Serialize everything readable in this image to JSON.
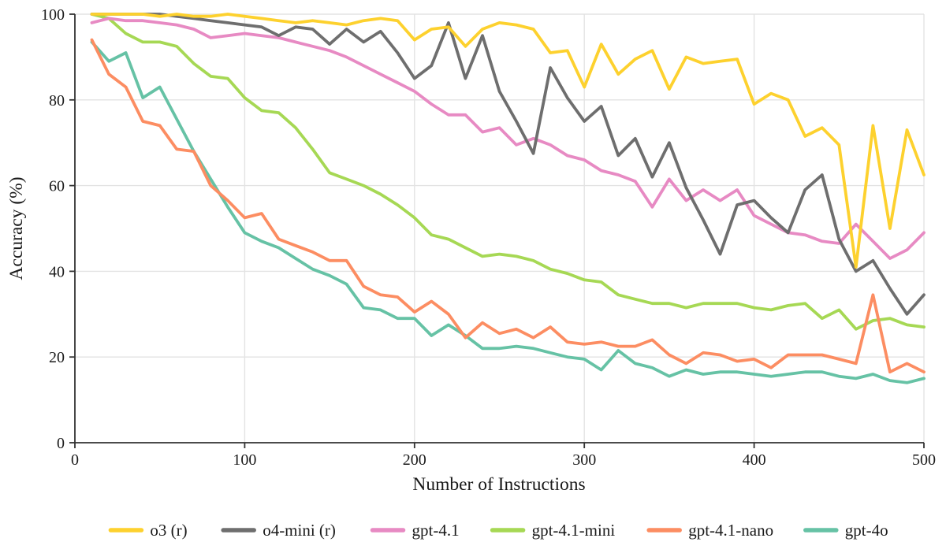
{
  "chart_data": {
    "type": "line",
    "title": "",
    "xlabel": "Number of Instructions",
    "ylabel": "Accuracy (%)",
    "xlim": [
      0,
      500
    ],
    "ylim": [
      0,
      100
    ],
    "x_ticks": [
      0,
      100,
      200,
      300,
      400,
      500
    ],
    "y_ticks": [
      0,
      20,
      40,
      60,
      80,
      100
    ],
    "grid": true,
    "grid_color": "#e3e3e3",
    "axis_color": "#333333",
    "legend_position": "bottom",
    "x": [
      10,
      20,
      30,
      40,
      50,
      60,
      70,
      80,
      90,
      100,
      110,
      120,
      130,
      140,
      150,
      160,
      170,
      180,
      190,
      200,
      210,
      220,
      230,
      240,
      250,
      260,
      270,
      280,
      290,
      300,
      310,
      320,
      330,
      340,
      350,
      360,
      370,
      380,
      390,
      400,
      410,
      420,
      430,
      440,
      450,
      460,
      470,
      480,
      490,
      500
    ],
    "series": [
      {
        "name": "o3 (r)",
        "color": "#FDD12E",
        "values": [
          100,
          100,
          100,
          100,
          99.5,
          100,
          99.5,
          99.5,
          100,
          99.5,
          99,
          98.5,
          98,
          98.5,
          98,
          97.5,
          98.5,
          99,
          98.5,
          94,
          96.5,
          97,
          92.5,
          96.5,
          98,
          97.5,
          96.5,
          91,
          91.5,
          83,
          93,
          86,
          89.5,
          91.5,
          82.5,
          90,
          88.5,
          89,
          89.5,
          79,
          81.5,
          80,
          71.5,
          73.5,
          69.5,
          41,
          74,
          50,
          73,
          62.5
        ]
      },
      {
        "name": "o4-mini (r)",
        "color": "#6E6E6E",
        "values": [
          100,
          100,
          100,
          100,
          100,
          99.5,
          99,
          98.5,
          98,
          97.5,
          97,
          95,
          97,
          96.5,
          93,
          96.5,
          93.5,
          96,
          91,
          85,
          88,
          98,
          85,
          95,
          82,
          75,
          67.5,
          87.5,
          80.5,
          75,
          78.5,
          67,
          71,
          62,
          70,
          59.5,
          52,
          44,
          55.5,
          56.5,
          52.5,
          49,
          59,
          62.5,
          47.5,
          40,
          42.5,
          36,
          30,
          34.5
        ]
      },
      {
        "name": "gpt-4.1",
        "color": "#E78AC3",
        "values": [
          98,
          99,
          98.5,
          98.5,
          98,
          97.5,
          96.5,
          94.5,
          95,
          95.5,
          95,
          94.5,
          93.5,
          92.5,
          91.5,
          90,
          88,
          86,
          84,
          82,
          79,
          76.5,
          76.5,
          72.5,
          73.5,
          69.5,
          71,
          69.5,
          67,
          66,
          63.5,
          62.5,
          61,
          55,
          61.5,
          56.5,
          59,
          56.5,
          59,
          53,
          51,
          49,
          48.5,
          47,
          46.5,
          51,
          47,
          43,
          45,
          49
        ]
      },
      {
        "name": "gpt-4.1-mini",
        "color": "#A6D854",
        "values": [
          100,
          99,
          95.5,
          93.5,
          93.5,
          92.5,
          88.5,
          85.5,
          85,
          80.5,
          77.5,
          77,
          73.5,
          68.5,
          63,
          61.5,
          60,
          58,
          55.5,
          52.5,
          48.5,
          47.5,
          45.5,
          43.5,
          44,
          43.5,
          42.5,
          40.5,
          39.5,
          38,
          37.5,
          34.5,
          33.5,
          32.5,
          32.5,
          31.5,
          32.5,
          32.5,
          32.5,
          31.5,
          31,
          32,
          32.5,
          29,
          31,
          26.5,
          28.5,
          29,
          27.5,
          27
        ]
      },
      {
        "name": "gpt-4.1-nano",
        "color": "#FC8D62",
        "values": [
          94,
          86,
          83,
          75,
          74,
          68.5,
          68,
          60,
          56.5,
          52.5,
          53.5,
          47.5,
          46,
          44.5,
          42.5,
          42.5,
          36.5,
          34.5,
          34,
          30.5,
          33,
          30,
          24.5,
          28,
          25.5,
          26.5,
          24.5,
          27,
          23.5,
          23,
          23.5,
          22.5,
          22.5,
          24,
          20.5,
          18.5,
          21,
          20.5,
          19,
          19.5,
          17.5,
          20.5,
          20.5,
          20.5,
          19.5,
          18.5,
          34.5,
          16.5,
          18.5,
          16.5
        ]
      },
      {
        "name": "gpt-4o",
        "color": "#66C2A5",
        "values": [
          93.5,
          89,
          91,
          80.5,
          83,
          75.5,
          68,
          61.5,
          55,
          49,
          47,
          45.5,
          43,
          40.5,
          39,
          37,
          31.5,
          31,
          29,
          29,
          25,
          27.5,
          25,
          22,
          22,
          22.5,
          22,
          21,
          20,
          19.5,
          17,
          21.5,
          18.5,
          17.5,
          15.5,
          17,
          16,
          16.5,
          16.5,
          16,
          15.5,
          16,
          16.5,
          16.5,
          15.5,
          15,
          16,
          14.5,
          14,
          15
        ]
      }
    ],
    "draw_order": [
      3,
      2,
      1,
      0,
      5,
      4
    ]
  }
}
